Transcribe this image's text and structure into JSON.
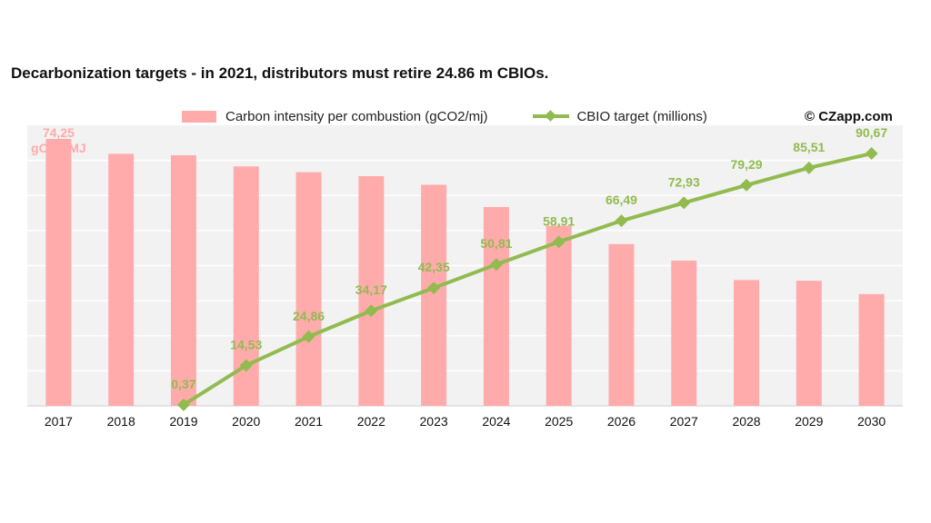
{
  "title": "Decarbonization targets - in 2021, distributors must retire 24.86 m CBIOs.",
  "credit": "© CZapp.com",
  "colors": {
    "bar": "#ffabab",
    "line": "#91bb4f",
    "plot_bg": "#f2f2f2",
    "grid": "#ffffff",
    "bar_label": "#ffabab"
  },
  "chart_data": {
    "type": "bar",
    "categories": [
      "2017",
      "2018",
      "2019",
      "2020",
      "2021",
      "2022",
      "2023",
      "2024",
      "2025",
      "2026",
      "2027",
      "2028",
      "2029",
      "2030"
    ],
    "series": [
      {
        "name": "Carbon intensity per combustion (gCO2/mj)",
        "type": "bar",
        "axis": "left",
        "values": [
          74.25,
          70.1,
          69.7,
          66.6,
          65.0,
          63.9,
          61.5,
          55.3,
          50.1,
          45.0,
          40.4,
          35.0,
          34.8,
          31.1
        ]
      },
      {
        "name": "CBIO target (millions)",
        "type": "line",
        "axis": "right",
        "values": [
          null,
          null,
          0.37,
          14.53,
          24.86,
          34.17,
          42.35,
          50.81,
          58.91,
          66.49,
          72.93,
          79.29,
          85.51,
          90.67
        ],
        "labels": [
          "",
          "",
          "0,37",
          "14,53",
          "24,86",
          "34,17",
          "42,35",
          "50,81",
          "58,91",
          "66,49",
          "72,93",
          "79,29",
          "85,51",
          "90,67"
        ]
      }
    ],
    "bar_annotation": {
      "category": "2017",
      "lines": [
        "74,25",
        "gCO2/MJ"
      ]
    },
    "ylim_left": [
      0,
      75
    ],
    "ylim_right": [
      0,
      91
    ],
    "grid": true,
    "legend_position": "top"
  }
}
